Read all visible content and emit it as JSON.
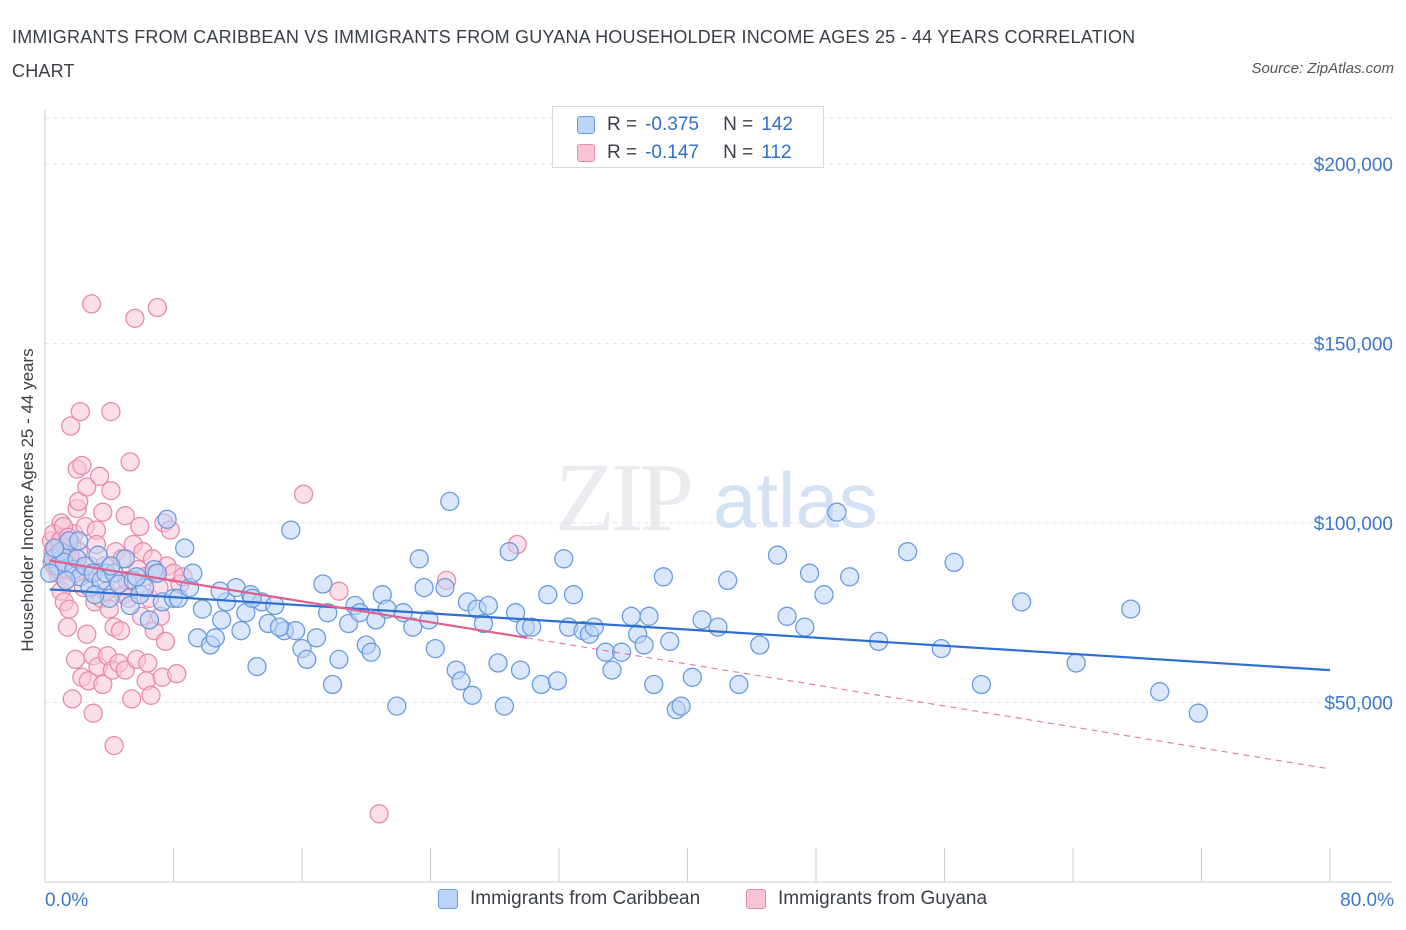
{
  "title": "IMMIGRANTS FROM CARIBBEAN VS IMMIGRANTS FROM GUYANA HOUSEHOLDER INCOME AGES 25 - 44 YEARS CORRELATION CHART",
  "source": "Source: ZipAtlas.com",
  "watermark": {
    "zip": "ZIP",
    "atlas": "atlas"
  },
  "colors": {
    "blue_fill": "#bcd4f5",
    "blue_stroke": "#6a9be0",
    "blue_line": "#2f6fd0",
    "pink_fill": "#f7c4d6",
    "pink_stroke": "#e98aab",
    "pink_line": "#e0608e",
    "axis_text": "#3b78c9",
    "grid": "#dfe3e8"
  },
  "legend": {
    "rows": [
      {
        "r_label": "R =",
        "r_value": "-0.375",
        "n_label": "N =",
        "n_value": "142"
      },
      {
        "r_label": "R =",
        "r_value": "-0.147",
        "n_label": "N =",
        "n_value": "112"
      }
    ]
  },
  "bottom_legend": [
    "Immigrants from Caribbean",
    "Immigrants from Guyana"
  ],
  "chart_data": {
    "type": "scatter",
    "title": "IMMIGRANTS FROM CARIBBEAN VS IMMIGRANTS FROM GUYANA HOUSEHOLDER INCOME AGES 25 - 44 YEARS CORRELATION CHART",
    "xlabel": "",
    "ylabel": "Householder Income Ages 25 - 44 years",
    "xlim": [
      0,
      80
    ],
    "ylim": [
      0,
      215000
    ],
    "x_tick_labels": [
      "0.0%",
      "80.0%"
    ],
    "y_ticks": [
      50000,
      100000,
      150000,
      200000
    ],
    "y_tick_labels": [
      "$50,000",
      "$100,000",
      "$150,000",
      "$200,000"
    ],
    "grid": true,
    "legend_position": "top-center",
    "series": [
      {
        "name": "Immigrants from Caribbean",
        "color": "#6a9be0",
        "trend": {
          "x": [
            0.3,
            80
          ],
          "y": [
            81500,
            59000
          ]
        },
        "points": [
          [
            0.5,
            90000
          ],
          [
            0.8,
            88000
          ],
          [
            1.0,
            92000
          ],
          [
            1.2,
            89000
          ],
          [
            1.5,
            95000
          ],
          [
            1.8,
            87000
          ],
          [
            2.0,
            90000
          ],
          [
            2.2,
            85000
          ],
          [
            2.5,
            88000
          ],
          [
            2.8,
            82000
          ],
          [
            3.0,
            86000
          ],
          [
            3.3,
            91000
          ],
          [
            3.5,
            84000
          ],
          [
            3.8,
            86000
          ],
          [
            4.0,
            79000
          ],
          [
            4.3,
            86000
          ],
          [
            4.6,
            83000
          ],
          [
            5.0,
            90000
          ],
          [
            5.3,
            77000
          ],
          [
            5.5,
            84000
          ],
          [
            5.9,
            80000
          ],
          [
            6.2,
            82000
          ],
          [
            6.5,
            73000
          ],
          [
            6.8,
            87000
          ],
          [
            7.3,
            78000
          ],
          [
            7.6,
            101000
          ],
          [
            8.0,
            79000
          ],
          [
            8.3,
            79000
          ],
          [
            8.7,
            93000
          ],
          [
            9.0,
            82000
          ],
          [
            9.5,
            68000
          ],
          [
            9.8,
            76000
          ],
          [
            10.3,
            66000
          ],
          [
            10.6,
            68000
          ],
          [
            11.0,
            73000
          ],
          [
            11.3,
            78000
          ],
          [
            11.9,
            82000
          ],
          [
            12.2,
            70000
          ],
          [
            12.5,
            75000
          ],
          [
            12.8,
            80000
          ],
          [
            13.2,
            60000
          ],
          [
            13.5,
            78000
          ],
          [
            13.9,
            72000
          ],
          [
            14.3,
            77000
          ],
          [
            14.9,
            70000
          ],
          [
            15.3,
            98000
          ],
          [
            15.6,
            70000
          ],
          [
            16.0,
            65000
          ],
          [
            16.3,
            62000
          ],
          [
            16.9,
            68000
          ],
          [
            17.3,
            83000
          ],
          [
            17.6,
            75000
          ],
          [
            17.9,
            55000
          ],
          [
            18.3,
            62000
          ],
          [
            18.9,
            72000
          ],
          [
            19.3,
            77000
          ],
          [
            19.6,
            75000
          ],
          [
            20.0,
            66000
          ],
          [
            20.3,
            64000
          ],
          [
            20.6,
            73000
          ],
          [
            21.0,
            80000
          ],
          [
            21.3,
            76000
          ],
          [
            21.9,
            49000
          ],
          [
            22.3,
            75000
          ],
          [
            22.9,
            71000
          ],
          [
            23.3,
            90000
          ],
          [
            23.6,
            82000
          ],
          [
            23.9,
            73000
          ],
          [
            24.3,
            65000
          ],
          [
            24.9,
            82000
          ],
          [
            25.2,
            106000
          ],
          [
            25.6,
            59000
          ],
          [
            25.9,
            56000
          ],
          [
            26.3,
            78000
          ],
          [
            26.6,
            52000
          ],
          [
            26.9,
            76000
          ],
          [
            27.3,
            72000
          ],
          [
            27.6,
            77000
          ],
          [
            28.2,
            61000
          ],
          [
            28.6,
            49000
          ],
          [
            28.9,
            92000
          ],
          [
            29.3,
            75000
          ],
          [
            29.6,
            59000
          ],
          [
            29.9,
            71000
          ],
          [
            30.3,
            71000
          ],
          [
            30.9,
            55000
          ],
          [
            31.3,
            80000
          ],
          [
            31.9,
            56000
          ],
          [
            32.3,
            90000
          ],
          [
            32.6,
            71000
          ],
          [
            32.9,
            80000
          ],
          [
            33.5,
            70000
          ],
          [
            33.9,
            69000
          ],
          [
            34.2,
            71000
          ],
          [
            34.9,
            64000
          ],
          [
            35.3,
            59000
          ],
          [
            35.9,
            64000
          ],
          [
            36.5,
            74000
          ],
          [
            36.9,
            69000
          ],
          [
            37.3,
            66000
          ],
          [
            37.6,
            74000
          ],
          [
            37.9,
            55000
          ],
          [
            38.5,
            85000
          ],
          [
            38.9,
            67000
          ],
          [
            39.3,
            48000
          ],
          [
            39.6,
            49000
          ],
          [
            40.3,
            57000
          ],
          [
            40.9,
            73000
          ],
          [
            41.9,
            71000
          ],
          [
            42.5,
            84000
          ],
          [
            43.2,
            55000
          ],
          [
            44.5,
            66000
          ],
          [
            45.6,
            91000
          ],
          [
            46.2,
            74000
          ],
          [
            47.3,
            71000
          ],
          [
            47.6,
            86000
          ],
          [
            48.5,
            80000
          ],
          [
            49.3,
            103000
          ],
          [
            50.1,
            85000
          ],
          [
            51.9,
            67000
          ],
          [
            53.7,
            92000
          ],
          [
            55.8,
            65000
          ],
          [
            56.6,
            89000
          ],
          [
            58.3,
            55000
          ],
          [
            60.8,
            78000
          ],
          [
            64.2,
            61000
          ],
          [
            67.6,
            76000
          ],
          [
            69.4,
            53000
          ],
          [
            71.8,
            47000
          ],
          [
            0.3,
            86000
          ],
          [
            0.6,
            93000
          ],
          [
            1.3,
            84000
          ],
          [
            2.1,
            95000
          ],
          [
            3.1,
            80000
          ],
          [
            4.1,
            88000
          ],
          [
            5.7,
            85000
          ],
          [
            7.0,
            86000
          ],
          [
            9.2,
            86000
          ],
          [
            10.9,
            81000
          ],
          [
            12.9,
            79000
          ],
          [
            14.6,
            71000
          ]
        ]
      },
      {
        "name": "Immigrants from Guyana",
        "color": "#e98aab",
        "trend": {
          "x": [
            0.3,
            30
          ],
          "y": [
            89500,
            68000
          ]
        },
        "trend_extension": {
          "x": [
            30,
            80
          ],
          "y": [
            68000,
            31500
          ]
        },
        "points": [
          [
            0.4,
            95000
          ],
          [
            0.5,
            92000
          ],
          [
            0.6,
            88000
          ],
          [
            0.7,
            90000
          ],
          [
            0.8,
            86000
          ],
          [
            0.9,
            94000
          ],
          [
            1.0,
            100000
          ],
          [
            1.0,
            81000
          ],
          [
            1.1,
            96000
          ],
          [
            1.2,
            89000
          ],
          [
            1.2,
            78000
          ],
          [
            1.3,
            84000
          ],
          [
            1.4,
            92000
          ],
          [
            1.4,
            71000
          ],
          [
            1.5,
            76000
          ],
          [
            1.6,
            88000
          ],
          [
            1.6,
            127000
          ],
          [
            1.7,
            94000
          ],
          [
            1.7,
            51000
          ],
          [
            1.8,
            97000
          ],
          [
            1.9,
            62000
          ],
          [
            1.9,
            86000
          ],
          [
            2.0,
            115000
          ],
          [
            2.0,
            104000
          ],
          [
            2.1,
            92000
          ],
          [
            2.1,
            106000
          ],
          [
            2.2,
            131000
          ],
          [
            2.3,
            116000
          ],
          [
            2.3,
            57000
          ],
          [
            2.4,
            82000
          ],
          [
            2.5,
            99000
          ],
          [
            2.6,
            110000
          ],
          [
            2.6,
            69000
          ],
          [
            2.7,
            56000
          ],
          [
            2.8,
            88000
          ],
          [
            2.9,
            86000
          ],
          [
            2.9,
            161000
          ],
          [
            3.0,
            63000
          ],
          [
            3.0,
            47000
          ],
          [
            3.1,
            78000
          ],
          [
            3.2,
            98000
          ],
          [
            3.2,
            94000
          ],
          [
            3.3,
            60000
          ],
          [
            3.4,
            113000
          ],
          [
            3.5,
            79000
          ],
          [
            3.6,
            103000
          ],
          [
            3.6,
            55000
          ],
          [
            3.7,
            88000
          ],
          [
            3.8,
            81000
          ],
          [
            3.9,
            63000
          ],
          [
            4.0,
            76000
          ],
          [
            4.1,
            109000
          ],
          [
            4.1,
            131000
          ],
          [
            4.2,
            59000
          ],
          [
            4.3,
            71000
          ],
          [
            4.3,
            38000
          ],
          [
            4.4,
            92000
          ],
          [
            4.5,
            84000
          ],
          [
            4.6,
            61000
          ],
          [
            4.7,
            70000
          ],
          [
            4.8,
            90000
          ],
          [
            4.9,
            80000
          ],
          [
            5.0,
            102000
          ],
          [
            5.0,
            59000
          ],
          [
            5.1,
            84000
          ],
          [
            5.2,
            79000
          ],
          [
            5.3,
            117000
          ],
          [
            5.4,
            51000
          ],
          [
            5.5,
            94000
          ],
          [
            5.6,
            157000
          ],
          [
            5.7,
            62000
          ],
          [
            5.8,
            87000
          ],
          [
            5.9,
            99000
          ],
          [
            6.0,
            74000
          ],
          [
            6.1,
            92000
          ],
          [
            6.2,
            85000
          ],
          [
            6.3,
            56000
          ],
          [
            6.4,
            61000
          ],
          [
            6.5,
            79000
          ],
          [
            6.6,
            52000
          ],
          [
            6.7,
            90000
          ],
          [
            6.8,
            70000
          ],
          [
            6.9,
            86000
          ],
          [
            7.0,
            160000
          ],
          [
            7.1,
            82000
          ],
          [
            7.2,
            74000
          ],
          [
            7.3,
            57000
          ],
          [
            7.4,
            100000
          ],
          [
            7.5,
            67000
          ],
          [
            7.6,
            88000
          ],
          [
            7.8,
            98000
          ],
          [
            8.0,
            86000
          ],
          [
            8.2,
            58000
          ],
          [
            8.4,
            83000
          ],
          [
            8.6,
            85000
          ],
          [
            16.1,
            108000
          ],
          [
            18.3,
            81000
          ],
          [
            20.8,
            19000
          ],
          [
            25.0,
            84000
          ],
          [
            29.4,
            94000
          ],
          [
            0.45,
            89000
          ],
          [
            0.55,
            97000
          ],
          [
            0.65,
            93000
          ],
          [
            0.75,
            91000
          ],
          [
            0.85,
            87000
          ],
          [
            0.95,
            95000
          ],
          [
            1.05,
            90000
          ],
          [
            1.15,
            99000
          ],
          [
            1.25,
            93000
          ],
          [
            1.35,
            87000
          ],
          [
            1.45,
            96000
          ],
          [
            1.55,
            91000
          ]
        ]
      }
    ]
  }
}
